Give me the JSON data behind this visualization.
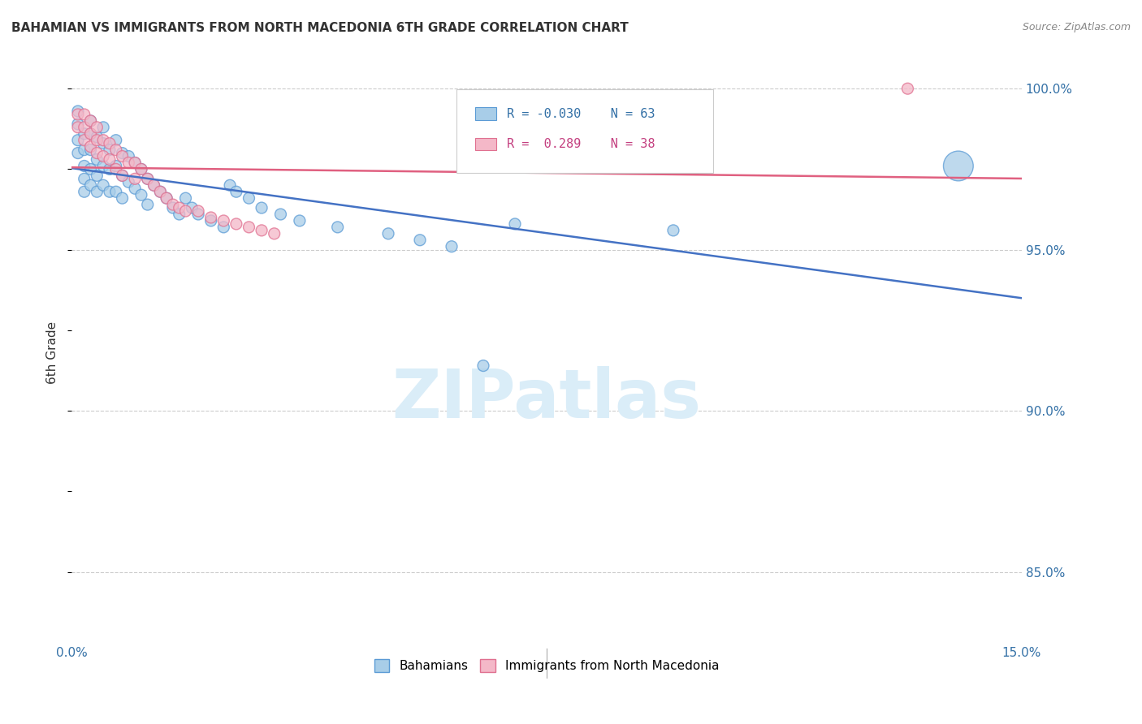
{
  "title": "BAHAMIAN VS IMMIGRANTS FROM NORTH MACEDONIA 6TH GRADE CORRELATION CHART",
  "source": "Source: ZipAtlas.com",
  "ylabel": "6th Grade",
  "xlim": [
    0.0,
    0.15
  ],
  "ylim": [
    0.828,
    1.008
  ],
  "xticks": [
    0.0,
    0.03,
    0.06,
    0.09,
    0.12,
    0.15
  ],
  "xtick_labels": [
    "0.0%",
    "",
    "",
    "",
    "",
    "15.0%"
  ],
  "ytick_labels_right": [
    "100.0%",
    "95.0%",
    "90.0%",
    "85.0%"
  ],
  "ytick_positions_right": [
    1.0,
    0.95,
    0.9,
    0.85
  ],
  "blue_R": "-0.030",
  "blue_N": "63",
  "pink_R": "0.289",
  "pink_N": "38",
  "blue_color": "#a8cde8",
  "pink_color": "#f4b8c8",
  "blue_edge_color": "#5b9bd5",
  "pink_edge_color": "#e07090",
  "blue_line_color": "#4472C4",
  "pink_line_color": "#E06080",
  "watermark_color": "#daedf8",
  "blue_scatter_x": [
    0.001,
    0.001,
    0.001,
    0.001,
    0.002,
    0.002,
    0.002,
    0.002,
    0.002,
    0.003,
    0.003,
    0.003,
    0.003,
    0.003,
    0.004,
    0.004,
    0.004,
    0.004,
    0.005,
    0.005,
    0.005,
    0.005,
    0.006,
    0.006,
    0.006,
    0.007,
    0.007,
    0.007,
    0.008,
    0.008,
    0.008,
    0.009,
    0.009,
    0.01,
    0.01,
    0.011,
    0.011,
    0.012,
    0.012,
    0.013,
    0.014,
    0.015,
    0.016,
    0.017,
    0.018,
    0.019,
    0.02,
    0.022,
    0.024,
    0.025,
    0.026,
    0.028,
    0.03,
    0.033,
    0.036,
    0.042,
    0.05,
    0.055,
    0.06,
    0.065,
    0.07,
    0.095,
    0.14
  ],
  "blue_scatter_y": [
    0.993,
    0.989,
    0.984,
    0.98,
    0.986,
    0.981,
    0.976,
    0.972,
    0.968,
    0.99,
    0.986,
    0.981,
    0.975,
    0.97,
    0.985,
    0.978,
    0.973,
    0.968,
    0.988,
    0.983,
    0.976,
    0.97,
    0.981,
    0.975,
    0.968,
    0.984,
    0.976,
    0.968,
    0.98,
    0.973,
    0.966,
    0.979,
    0.971,
    0.977,
    0.969,
    0.975,
    0.967,
    0.972,
    0.964,
    0.97,
    0.968,
    0.966,
    0.963,
    0.961,
    0.966,
    0.963,
    0.961,
    0.959,
    0.957,
    0.97,
    0.968,
    0.966,
    0.963,
    0.961,
    0.959,
    0.957,
    0.955,
    0.953,
    0.951,
    0.914,
    0.958,
    0.956,
    0.976
  ],
  "blue_scatter_size": [
    100,
    100,
    100,
    100,
    100,
    100,
    100,
    100,
    100,
    100,
    100,
    100,
    100,
    100,
    100,
    100,
    100,
    100,
    100,
    100,
    100,
    100,
    100,
    100,
    100,
    100,
    100,
    100,
    100,
    100,
    100,
    100,
    100,
    100,
    100,
    100,
    100,
    100,
    100,
    100,
    100,
    100,
    100,
    100,
    100,
    100,
    100,
    100,
    100,
    100,
    100,
    100,
    100,
    100,
    100,
    100,
    100,
    100,
    100,
    100,
    100,
    100,
    700
  ],
  "pink_scatter_x": [
    0.001,
    0.001,
    0.002,
    0.002,
    0.002,
    0.003,
    0.003,
    0.003,
    0.004,
    0.004,
    0.004,
    0.005,
    0.005,
    0.006,
    0.006,
    0.007,
    0.007,
    0.008,
    0.008,
    0.009,
    0.01,
    0.01,
    0.011,
    0.012,
    0.013,
    0.014,
    0.015,
    0.016,
    0.017,
    0.018,
    0.02,
    0.022,
    0.024,
    0.026,
    0.028,
    0.03,
    0.032,
    0.132
  ],
  "pink_scatter_y": [
    0.992,
    0.988,
    0.992,
    0.988,
    0.984,
    0.99,
    0.986,
    0.982,
    0.988,
    0.984,
    0.98,
    0.984,
    0.979,
    0.983,
    0.978,
    0.981,
    0.975,
    0.979,
    0.973,
    0.977,
    0.977,
    0.972,
    0.975,
    0.972,
    0.97,
    0.968,
    0.966,
    0.964,
    0.963,
    0.962,
    0.962,
    0.96,
    0.959,
    0.958,
    0.957,
    0.956,
    0.955,
    1.0
  ],
  "pink_scatter_size": [
    100,
    100,
    100,
    100,
    100,
    100,
    100,
    100,
    100,
    100,
    100,
    100,
    100,
    100,
    100,
    100,
    100,
    100,
    100,
    100,
    100,
    100,
    100,
    100,
    100,
    100,
    100,
    100,
    100,
    100,
    100,
    100,
    100,
    100,
    100,
    100,
    100,
    100
  ]
}
